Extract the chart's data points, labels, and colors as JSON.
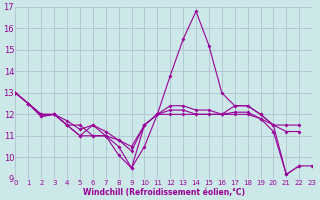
{
  "xlabel": "Windchill (Refroidissement éolien,°C)",
  "bg_color": "#cce8e8",
  "line_color": "#990099",
  "grid_color": "#aabbcc",
  "xlim": [
    0,
    23
  ],
  "ylim": [
    9,
    17
  ],
  "xticks": [
    0,
    1,
    2,
    3,
    4,
    5,
    6,
    7,
    8,
    9,
    10,
    11,
    12,
    13,
    14,
    15,
    16,
    17,
    18,
    19,
    20,
    21,
    22,
    23
  ],
  "yticks": [
    9,
    10,
    11,
    12,
    13,
    14,
    15,
    16,
    17
  ],
  "lines": [
    {
      "x": [
        0,
        1,
        2,
        3,
        4,
        5,
        6,
        7,
        8,
        9,
        10,
        11,
        12,
        13,
        14,
        15,
        16,
        17,
        18,
        19,
        20,
        21,
        22,
        23
      ],
      "y": [
        13.0,
        12.5,
        11.9,
        12.0,
        11.5,
        11.5,
        11.0,
        11.0,
        10.1,
        9.5,
        10.5,
        12.0,
        13.8,
        15.5,
        16.8,
        15.2,
        13.0,
        12.4,
        12.4,
        12.0,
        11.5,
        9.2,
        9.6,
        9.6
      ]
    },
    {
      "x": [
        0,
        1,
        2,
        3,
        4,
        5,
        6,
        7,
        8,
        9,
        10,
        11,
        12,
        13,
        14,
        15,
        16,
        17,
        18,
        19,
        20,
        21,
        22
      ],
      "y": [
        13.0,
        12.5,
        12.0,
        12.0,
        11.5,
        11.0,
        11.0,
        11.0,
        10.8,
        10.5,
        11.5,
        12.0,
        12.0,
        12.0,
        12.0,
        12.0,
        12.0,
        12.4,
        12.4,
        12.0,
        11.5,
        11.5,
        11.5
      ]
    },
    {
      "x": [
        0,
        1,
        2,
        3,
        4,
        5,
        6,
        7,
        8,
        9,
        10,
        11,
        12,
        13,
        14,
        15,
        16,
        17,
        18,
        19,
        20,
        21,
        22
      ],
      "y": [
        13.0,
        12.5,
        12.0,
        12.0,
        11.7,
        11.3,
        11.5,
        11.2,
        10.8,
        10.3,
        11.5,
        12.0,
        12.2,
        12.2,
        12.0,
        12.0,
        12.0,
        12.0,
        12.0,
        11.8,
        11.5,
        11.2,
        11.2
      ]
    },
    {
      "x": [
        0,
        1,
        2,
        3,
        4,
        5,
        6,
        7,
        8,
        9,
        10,
        11,
        12,
        13,
        14,
        15,
        16,
        17,
        18,
        19,
        20,
        21,
        22
      ],
      "y": [
        13.0,
        12.5,
        11.9,
        12.0,
        11.5,
        11.0,
        11.5,
        11.0,
        10.5,
        9.5,
        11.5,
        12.0,
        12.4,
        12.4,
        12.2,
        12.2,
        12.0,
        12.1,
        12.1,
        11.8,
        11.2,
        9.2,
        9.6
      ]
    }
  ]
}
